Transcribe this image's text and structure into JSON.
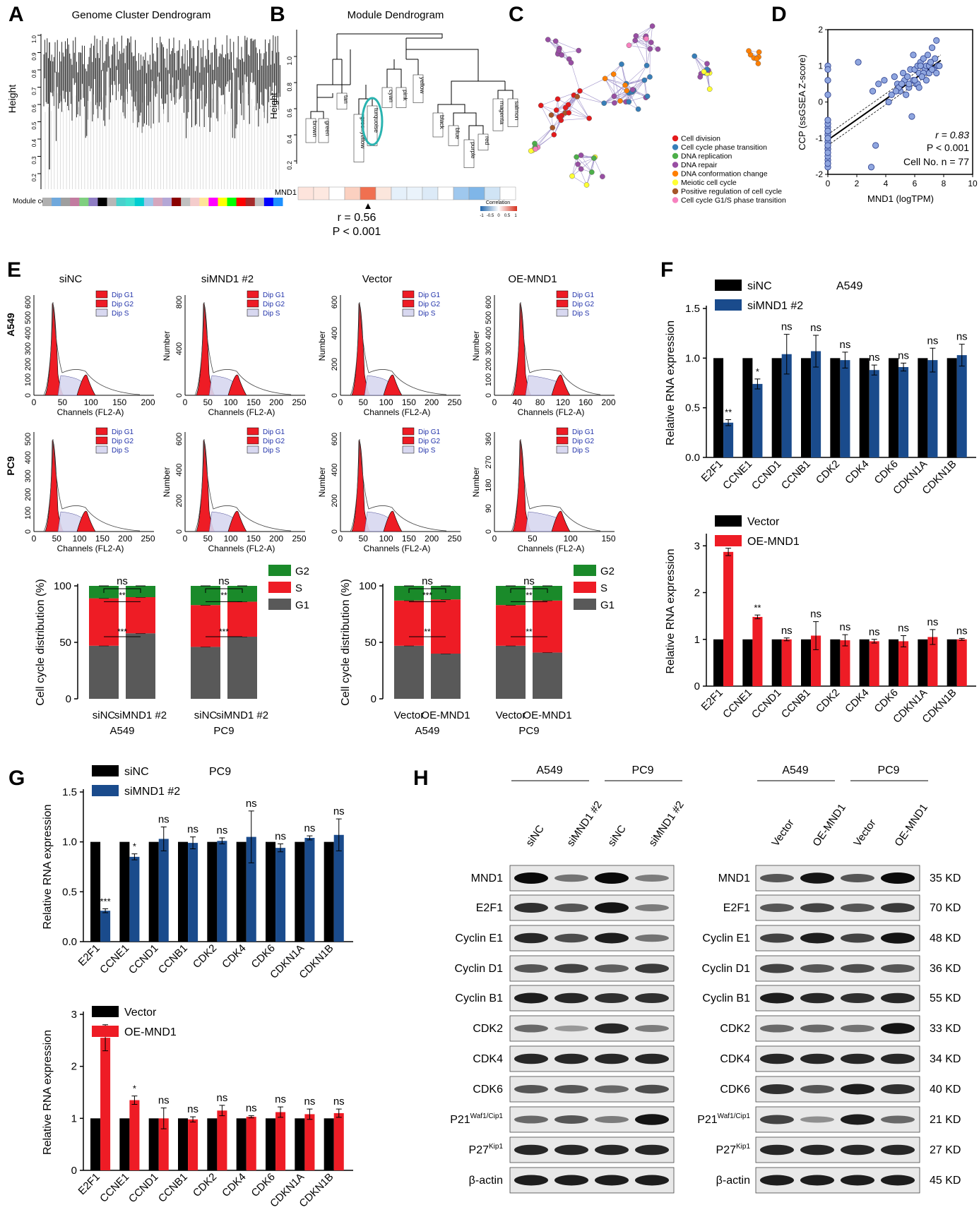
{
  "panel_letters": [
    "A",
    "B",
    "C",
    "D",
    "E",
    "F",
    "G",
    "H"
  ],
  "colors": {
    "black": "#000000",
    "blue": "#1a4b8c",
    "red": "#ee1c25",
    "green": "#1a8a2a",
    "gray": "#595959",
    "teal": "#2ab3b0"
  },
  "panelA": {
    "title": "Genome Cluster Dendrogram",
    "ylabel": "Height",
    "yticks": [
      "0.2",
      "0.3",
      "0.4",
      "0.5",
      "0.6",
      "0.7",
      "0.8",
      "0.9",
      "1.0"
    ],
    "module_colors_label": "Module colors",
    "strip": [
      "#b0b0b0",
      "#6fa8dc",
      "#9e9e9e",
      "#c27ba0",
      "#7fcf7f",
      "#8e7cc3",
      "#000000",
      "#b7b7b7",
      "#48d1cc",
      "#40e0d0",
      "#00ced1",
      "#9fc5e8",
      "#d5a6bd",
      "#b4a7d6",
      "#8b0000",
      "#c0c0c0",
      "#f4cccc",
      "#ffe599",
      "#ff00ff",
      "#ffff00",
      "#00ff00",
      "#ff0000",
      "#a52a2a",
      "#c0c0c0",
      "#0000ff",
      "#1e90ff"
    ]
  },
  "panelB": {
    "title": "Module Dendrogram",
    "ylabel": "Height",
    "yticks": [
      "0.2",
      "0.4",
      "0.6",
      "0.8",
      "1.0"
    ],
    "modules": [
      "brown",
      "green",
      "tan",
      "greenyellow",
      "turquoise",
      "cyan",
      "pink",
      "yellow",
      "black",
      "blue",
      "purple",
      "red",
      "magenta",
      "salmon"
    ],
    "heat_label": "MND1",
    "heat_colors": [
      "#fde4dc",
      "#fde8e0",
      "#ffffff",
      "#fbd0c0",
      "#f07050",
      "#fbe6dc",
      "#e5f0fa",
      "#eaf3fb",
      "#dceaf7",
      "#ffffff",
      "#9fc8ee",
      "#7fb6e8",
      "#d0e4f5",
      "#ffffff"
    ],
    "legend_title": "Correlation",
    "legend_ticks": [
      "-1",
      "-0.5",
      "0",
      "0.5",
      "1"
    ],
    "stat_r": "r = 0.56",
    "stat_p": "P < 0.001"
  },
  "panelC": {
    "legend": [
      {
        "label": "Cell division",
        "color": "#e41a1c"
      },
      {
        "label": "Cell cycle phase transition",
        "color": "#377eb8"
      },
      {
        "label": "DNA replication",
        "color": "#4daf4a"
      },
      {
        "label": "DNA repair",
        "color": "#984ea3"
      },
      {
        "label": "DNA conformation change",
        "color": "#ff7f00"
      },
      {
        "label": "Meiotic cell cycle",
        "color": "#ffff33"
      },
      {
        "label": "Positive regulation of cell cycle",
        "color": "#a65628"
      },
      {
        "label": "Cell cycle G1/S phase transition",
        "color": "#f781bf"
      }
    ]
  },
  "panelD": {
    "ylabel": "CCP (ssGSEA Z-score)",
    "xlabel": "MND1 (logTPM)",
    "xticks": [
      "0",
      "2",
      "4",
      "6",
      "8",
      "10"
    ],
    "yticks": [
      "-2",
      "-1",
      "0",
      "1",
      "2"
    ],
    "stat_r": "r = 0.83",
    "stat_p": "P < 0.001",
    "stat_n": "Cell No. n = 77",
    "chart_data": {
      "type": "scatter",
      "xlabel": "MND1 (logTPM)",
      "ylabel": "CCP (ssGSEA Z-score)",
      "xlim": [
        0,
        10
      ],
      "ylim": [
        -2,
        2
      ],
      "x": [
        0,
        0,
        0,
        0,
        0,
        0,
        0,
        0,
        0,
        0,
        0,
        0,
        0,
        0,
        0,
        0,
        0,
        0,
        0,
        0,
        0,
        0,
        0,
        0,
        2.1,
        3.0,
        3.3,
        3.5,
        3.9,
        4.4,
        4.6,
        4.8,
        5.0,
        5.2,
        5.3,
        5.5,
        5.6,
        5.7,
        5.9,
        6.0,
        6.1,
        6.2,
        6.3,
        6.4,
        6.5,
        6.6,
        6.7,
        6.8,
        6.9,
        7.0,
        7.1,
        7.2,
        7.3,
        7.4,
        7.5,
        7.6,
        7.7,
        5.8,
        6.2,
        6.6,
        7.0,
        5.4,
        4.9,
        6.8,
        7.2,
        3.1,
        4.2,
        5.1,
        6.0,
        6.4,
        7.5,
        5.9,
        6.5,
        7.1,
        6.3,
        5.6,
        4.7
      ],
      "y": [
        -1.8,
        -1.6,
        -1.5,
        -1.3,
        -1.2,
        -1.1,
        -1.0,
        -0.9,
        -0.8,
        -0.7,
        -0.6,
        -0.9,
        -1.1,
        -1.3,
        -1.4,
        -1.7,
        -0.5,
        -1.0,
        -1.2,
        -0.8,
        1.0,
        0.9,
        0.6,
        0.2,
        1.1,
        -1.8,
        -1.2,
        0.5,
        0.6,
        0.2,
        0.7,
        0.5,
        0.3,
        0.8,
        0.6,
        0.7,
        0.4,
        0.9,
        0.6,
        0.9,
        0.5,
        1.0,
        0.8,
        1.1,
        0.7,
        1.2,
        0.9,
        1.0,
        1.3,
        0.8,
        1.1,
        1.5,
        0.9,
        1.2,
        1.7,
        1.0,
        1.0,
        -0.4,
        0.5,
        0.8,
        1.0,
        0.2,
        0.4,
        0.6,
        0.9,
        0.3,
        0.0,
        0.5,
        0.6,
        1.0,
        0.8,
        1.3,
        0.7,
        1.1,
        0.4,
        0.5,
        0.3
      ]
    }
  },
  "panelE": {
    "col_titles": [
      "siNC",
      "siMND1 #2",
      "Vector",
      "OE-MND1"
    ],
    "row_labels": [
      "A549",
      "PC9"
    ],
    "xlabel": "Channels (FL2-A)",
    "ylabel": "Number",
    "legend": [
      "Dip G1",
      "Dip G2",
      "Dip S"
    ],
    "a549_yticks": [
      [
        "0",
        "100",
        "200",
        "300",
        "400",
        "500",
        "600"
      ],
      [
        "0",
        "400",
        "800"
      ],
      [
        "0",
        "200",
        "400",
        "600"
      ],
      [
        "0",
        "100",
        "200",
        "300",
        "400",
        "500",
        "600"
      ]
    ],
    "pc9_yticks": [
      [
        "0",
        "100",
        "200",
        "300",
        "400",
        "500"
      ],
      [
        "0",
        "200",
        "400",
        "600"
      ],
      [
        "0",
        "200",
        "400",
        "600"
      ],
      [
        "0",
        "90",
        "180",
        "270",
        "360"
      ]
    ],
    "a549_xticks": [
      [
        "0",
        "50",
        "100",
        "150",
        "200"
      ],
      [
        "0",
        "50",
        "100",
        "150",
        "200",
        "250"
      ],
      [
        "0",
        "50",
        "100",
        "150",
        "200",
        "250"
      ],
      [
        "0",
        "40",
        "80",
        "120",
        "160",
        "200"
      ]
    ],
    "pc9_xticks": [
      [
        "0",
        "50",
        "100",
        "150",
        "200",
        "250"
      ],
      [
        "0",
        "50",
        "100",
        "150",
        "200",
        "250"
      ],
      [
        "0",
        "50",
        "100",
        "150",
        "200",
        "250"
      ],
      [
        "0",
        "50",
        "100",
        "150"
      ]
    ],
    "bar_ylabel": "Cell cycle distribution (%)",
    "bar_yticks": [
      "0",
      "50",
      "100"
    ],
    "stack_legend": [
      "G2",
      "S",
      "G1"
    ],
    "si_xlabels": [
      "siNC",
      "siMND1 #2",
      "siNC",
      "siMND1 #2"
    ],
    "oe_xlabels": [
      "Vector",
      "OE-MND1",
      "Vector",
      "OE-MND1"
    ],
    "group_labels": [
      "A549",
      "PC9"
    ],
    "chart_data": [
      {
        "type": "bar",
        "stacked": true,
        "categories": [
          "siNC A549",
          "siMND1 #2 A549",
          "siNC PC9",
          "siMND1 #2 PC9"
        ],
        "series": [
          {
            "name": "G1",
            "values": [
              47,
              58,
              46,
              55
            ]
          },
          {
            "name": "S",
            "values": [
              42,
              32,
              37,
              31
            ]
          },
          {
            "name": "G2",
            "values": [
              11,
              10,
              17,
              14
            ]
          }
        ],
        "ylabel": "Cell cycle distribution (%)",
        "ylim": [
          0,
          100
        ]
      },
      {
        "type": "bar",
        "stacked": true,
        "categories": [
          "Vector A549",
          "OE-MND1 A549",
          "Vector PC9",
          "OE-MND1 PC9"
        ],
        "series": [
          {
            "name": "G1",
            "values": [
              47,
              40,
              47,
              41
            ]
          },
          {
            "name": "S",
            "values": [
              40,
              48,
              36,
              46
            ]
          },
          {
            "name": "G2",
            "values": [
              13,
              12,
              17,
              13
            ]
          }
        ],
        "ylabel": "Cell cycle distribution (%)",
        "ylim": [
          0,
          100
        ]
      }
    ],
    "sig": {
      "ns": "ns",
      "two": "**",
      "three": "***"
    }
  },
  "genes": [
    "E2F1",
    "CCNE1",
    "CCND1",
    "CCNB1",
    "CDK2",
    "CDK4",
    "CDK6",
    "CDKN1A",
    "CDKN1B"
  ],
  "panelF": {
    "ylabel": "Relative RNA expression",
    "top": {
      "cell": "A549",
      "legend": [
        "siNC",
        "siMND1 #2"
      ],
      "yticks": [
        "0.0",
        "0.5",
        "1.0",
        "1.5"
      ],
      "sig": [
        "**",
        "*",
        "ns",
        "ns",
        "ns",
        "ns",
        "ns",
        "ns",
        "ns"
      ],
      "chart_data": {
        "type": "bar",
        "categories": [
          "E2F1",
          "CCNE1",
          "CCND1",
          "CCNB1",
          "CDK2",
          "CDK4",
          "CDK6",
          "CDKN1A",
          "CDKN1B"
        ],
        "series": [
          {
            "name": "siNC",
            "values": [
              1,
              1,
              1,
              1,
              1,
              1,
              1,
              1,
              1
            ]
          },
          {
            "name": "siMND1 #2",
            "values": [
              0.35,
              0.74,
              1.04,
              1.07,
              0.98,
              0.88,
              0.91,
              0.98,
              1.03
            ]
          }
        ],
        "errors": [
          0.03,
          0.05,
          0.2,
          0.16,
          0.08,
          0.05,
          0.04,
          0.12,
          0.11
        ],
        "ylabel": "Relative RNA expression",
        "ylim": [
          0,
          1.5
        ]
      }
    },
    "bottom": {
      "legend": [
        "Vector",
        "OE-MND1"
      ],
      "yticks": [
        "0",
        "1",
        "2",
        "3"
      ],
      "sig": [
        "**",
        "**",
        "ns",
        "ns",
        "ns",
        "ns",
        "ns",
        "ns",
        "ns"
      ],
      "chart_data": {
        "type": "bar",
        "categories": [
          "E2F1",
          "CCNE1",
          "CCND1",
          "CCNB1",
          "CDK2",
          "CDK4",
          "CDK6",
          "CDKN1A",
          "CDKN1B"
        ],
        "series": [
          {
            "name": "Vector",
            "values": [
              1,
              1,
              1,
              1,
              1,
              1,
              1,
              1,
              1
            ]
          },
          {
            "name": "OE-MND1",
            "values": [
              2.87,
              1.48,
              1.0,
              1.08,
              0.98,
              0.96,
              0.96,
              1.05,
              1.0
            ]
          }
        ],
        "errors": [
          0.08,
          0.04,
          0.03,
          0.3,
          0.12,
          0.04,
          0.12,
          0.16,
          0.02
        ],
        "ylabel": "Relative RNA expression",
        "ylim": [
          0,
          3.2
        ]
      }
    }
  },
  "panelG": {
    "ylabel": "Relative RNA expression",
    "top": {
      "cell": "PC9",
      "legend": [
        "siNC",
        "siMND1 #2"
      ],
      "yticks": [
        "0.0",
        "0.5",
        "1.0",
        "1.5"
      ],
      "sig": [
        "***",
        "*",
        "ns",
        "ns",
        "ns",
        "ns",
        "ns",
        "ns",
        "ns"
      ],
      "chart_data": {
        "type": "bar",
        "categories": [
          "E2F1",
          "CCNE1",
          "CCND1",
          "CCNB1",
          "CDK2",
          "CDK4",
          "CDK6",
          "CDKN1A",
          "CDKN1B"
        ],
        "series": [
          {
            "name": "siNC",
            "values": [
              1,
              1,
              1,
              1,
              1,
              1,
              1,
              1,
              1
            ]
          },
          {
            "name": "siMND1 #2",
            "values": [
              0.31,
              0.85,
              1.03,
              0.99,
              1.01,
              1.05,
              0.94,
              1.04,
              1.07
            ]
          }
        ],
        "errors": [
          0.02,
          0.03,
          0.12,
          0.06,
          0.03,
          0.26,
          0.04,
          0.02,
          0.16
        ],
        "ylabel": "Relative RNA expression",
        "ylim": [
          0,
          1.5
        ]
      }
    },
    "bottom": {
      "legend": [
        "Vector",
        "OE-MND1"
      ],
      "yticks": [
        "0",
        "1",
        "2",
        "3"
      ],
      "sig": [
        "*",
        "*",
        "ns",
        "ns",
        "ns",
        "ns",
        "ns",
        "ns",
        "ns"
      ],
      "chart_data": {
        "type": "bar",
        "categories": [
          "E2F1",
          "CCNE1",
          "CCND1",
          "CCNB1",
          "CDK2",
          "CDK4",
          "CDK6",
          "CDKN1A",
          "CDKN1B"
        ],
        "series": [
          {
            "name": "Vector",
            "values": [
              1,
              1,
              1,
              1,
              1,
              1,
              1,
              1,
              1
            ]
          },
          {
            "name": "OE-MND1",
            "values": [
              2.55,
              1.35,
              1.0,
              0.98,
              1.15,
              1.03,
              1.12,
              1.08,
              1.1
            ]
          }
        ],
        "errors": [
          0.25,
          0.08,
          0.2,
          0.05,
          0.1,
          0.02,
          0.1,
          0.1,
          0.08
        ],
        "ylabel": "Relative RNA expression",
        "ylim": [
          0,
          3
        ]
      }
    }
  },
  "panelH": {
    "left_groups": [
      "A549",
      "PC9"
    ],
    "left_lanes": [
      "siNC",
      "siMND1 #2",
      "siNC",
      "siMND1 #2"
    ],
    "right_groups": [
      "A549",
      "PC9"
    ],
    "right_lanes": [
      "Vector",
      "OE-MND1",
      "Vector",
      "OE-MND1"
    ],
    "proteins": [
      "MND1",
      "E2F1",
      "Cyclin E1",
      "Cyclin D1",
      "Cyclin B1",
      "CDK2",
      "CDK4",
      "CDK6",
      "P21",
      "P27",
      "β-actin"
    ],
    "sup_p21": "Waf1/Cip1",
    "sup_p27": "Kip1",
    "kd": [
      "35 KD",
      "70 KD",
      "48 KD",
      "36 KD",
      "55 KD",
      "33 KD",
      "34 KD",
      "40 KD",
      "21 KD",
      "27 KD",
      "45 KD"
    ],
    "left_intensity": [
      [
        1,
        0.45,
        1,
        0.4
      ],
      [
        0.8,
        0.6,
        0.95,
        0.4
      ],
      [
        0.85,
        0.65,
        0.9,
        0.45
      ],
      [
        0.6,
        0.7,
        0.55,
        0.75
      ],
      [
        0.9,
        0.85,
        0.8,
        0.8
      ],
      [
        0.5,
        0.25,
        0.85,
        0.4
      ],
      [
        0.85,
        0.85,
        0.85,
        0.85
      ],
      [
        0.6,
        0.6,
        0.5,
        0.65
      ],
      [
        0.5,
        0.6,
        0.4,
        0.95
      ],
      [
        0.85,
        0.85,
        0.85,
        0.85
      ],
      [
        0.9,
        0.9,
        0.9,
        0.9
      ]
    ],
    "right_intensity": [
      [
        0.6,
        0.95,
        0.6,
        1
      ],
      [
        0.6,
        0.7,
        0.6,
        0.75
      ],
      [
        0.7,
        0.9,
        0.7,
        0.95
      ],
      [
        0.7,
        0.6,
        0.65,
        0.6
      ],
      [
        0.9,
        0.85,
        0.8,
        0.85
      ],
      [
        0.5,
        0.5,
        0.45,
        0.95
      ],
      [
        0.85,
        0.85,
        0.85,
        0.85
      ],
      [
        0.8,
        0.6,
        0.9,
        0.8
      ],
      [
        0.7,
        0.3,
        0.9,
        0.5
      ],
      [
        0.85,
        0.85,
        0.85,
        0.85
      ],
      [
        0.9,
        0.9,
        0.9,
        0.9
      ]
    ]
  }
}
